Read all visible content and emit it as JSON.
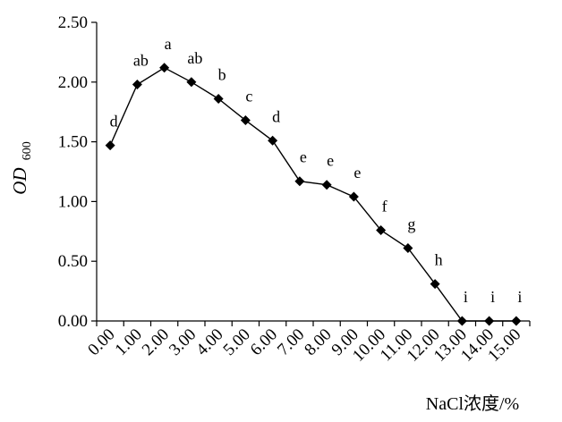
{
  "chart_data": {
    "type": "line",
    "xlabel": "NaCl浓度/%",
    "ylabel": {
      "main": "OD",
      "sub": "600"
    },
    "ylim": [
      0,
      2.5
    ],
    "y_ticks": [
      "0.00",
      "0.50",
      "1.00",
      "1.50",
      "2.00",
      "2.50"
    ],
    "categories": [
      "0.00",
      "1.00",
      "2.00",
      "3.00",
      "4.00",
      "5.00",
      "6.00",
      "7.00",
      "8.00",
      "9.00",
      "10.00",
      "11.00",
      "12.00",
      "13.00",
      "14.00",
      "15.00"
    ],
    "series": [
      {
        "values": [
          1.47,
          1.98,
          2.12,
          2.0,
          1.86,
          1.68,
          1.51,
          1.17,
          1.14,
          1.04,
          0.76,
          0.61,
          0.31,
          0.0,
          0.0,
          0.0
        ],
        "labels": [
          "d",
          "ab",
          "a",
          "ab",
          "b",
          "c",
          "d",
          "e",
          "e",
          "e",
          "f",
          "g",
          "h",
          "i",
          "i",
          "i"
        ]
      }
    ],
    "grid": false,
    "marker": "diamond",
    "color": "#000000"
  }
}
